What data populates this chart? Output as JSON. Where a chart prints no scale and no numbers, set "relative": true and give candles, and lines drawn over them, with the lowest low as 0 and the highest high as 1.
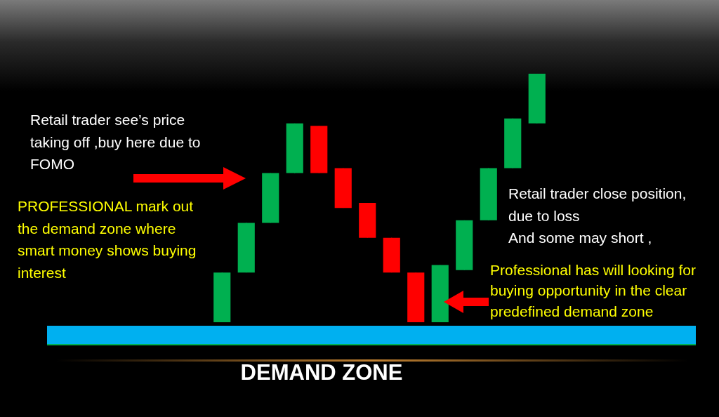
{
  "chart_data": {
    "type": "candlestick",
    "relative": true,
    "categories": [
      null,
      null,
      null,
      null,
      null,
      null,
      null,
      null,
      null,
      null,
      null,
      null,
      null,
      null
    ],
    "ohlc": [
      [
        0,
        0.2,
        0,
        0.2
      ],
      [
        0.2,
        0.4,
        0.2,
        0.4
      ],
      [
        0.4,
        0.6,
        0.4,
        0.6
      ],
      [
        0.6,
        0.8,
        0.6,
        0.8
      ],
      [
        0.79,
        0.79,
        0.6,
        0.6
      ],
      [
        0.62,
        0.62,
        0.46,
        0.46
      ],
      [
        0.48,
        0.48,
        0.34,
        0.34
      ],
      [
        0.34,
        0.34,
        0.2,
        0.2
      ],
      [
        0.2,
        0.2,
        0,
        0
      ],
      [
        0,
        0.23,
        0,
        0.23
      ],
      [
        0.21,
        0.41,
        0.21,
        0.41
      ],
      [
        0.41,
        0.62,
        0.41,
        0.62
      ],
      [
        0.62,
        0.82,
        0.62,
        0.82
      ],
      [
        0.8,
        1,
        0.8,
        1
      ]
    ],
    "colors": [
      "#00b050",
      "#00b050",
      "#00b050",
      "#00b050",
      "#ff0000",
      "#ff0000",
      "#ff0000",
      "#ff0000",
      "#ff0000",
      "#00b050",
      "#00b050",
      "#00b050",
      "#00b050",
      "#00b050"
    ],
    "annotations": [
      "Retail trader see’s price taking off ,buy here due to FOMO",
      "PROFESSIONAL mark out the demand zone where smart money shows buying interest",
      "Retail trader close position,\ndue to loss\nAnd some may short ,",
      "Professional has will looking for buying opportunity in the clear predefined demand zone",
      "DEMAND ZONE"
    ]
  }
}
